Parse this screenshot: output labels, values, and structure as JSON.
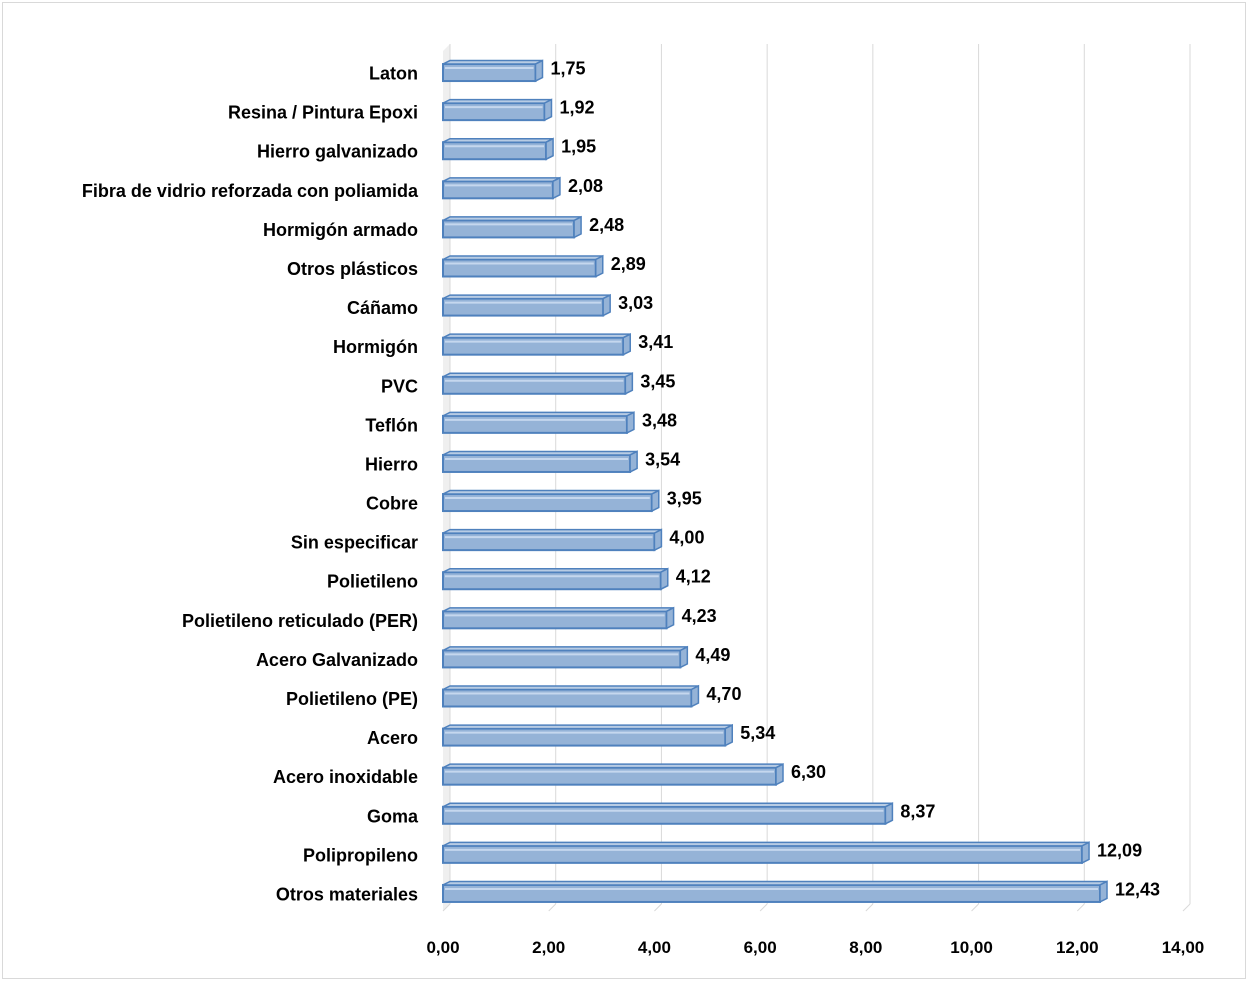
{
  "chart_data": {
    "type": "bar",
    "orientation": "horizontal",
    "title": "",
    "xlabel": "",
    "ylabel": "",
    "categories": [
      "Laton",
      "Resina / Pintura Epoxi",
      "Hierro galvanizado",
      "Fibra de vidrio reforzada con poliamida",
      "Hormigón armado",
      "Otros plásticos",
      "Cáñamo",
      "Hormigón",
      "PVC",
      "Teflón",
      "Hierro",
      "Cobre",
      "Sin especificar",
      "Polietileno",
      "Polietileno reticulado (PER)",
      "Acero Galvanizado",
      "Polietileno (PE)",
      "Acero",
      "Acero inoxidable",
      "Goma",
      "Polipropileno",
      "Otros materiales"
    ],
    "values": [
      1.75,
      1.92,
      1.95,
      2.08,
      2.48,
      2.89,
      3.03,
      3.41,
      3.45,
      3.48,
      3.54,
      3.95,
      4.0,
      4.12,
      4.23,
      4.49,
      4.7,
      5.34,
      6.3,
      8.37,
      12.09,
      12.43
    ],
    "value_labels": [
      "1,75",
      "1,92",
      "1,95",
      "2,08",
      "2,48",
      "2,89",
      "3,03",
      "3,41",
      "3,45",
      "3,48",
      "3,54",
      "3,95",
      "4,00",
      "4,12",
      "4,23",
      "4,49",
      "4,70",
      "5,34",
      "6,30",
      "8,37",
      "12,09",
      "12,43"
    ],
    "xlim": [
      0,
      14
    ],
    "xticks": [
      0,
      2,
      4,
      6,
      8,
      10,
      12,
      14
    ],
    "xtick_labels": [
      "0,00",
      "2,00",
      "4,00",
      "6,00",
      "8,00",
      "10,00",
      "12,00",
      "14,00"
    ],
    "grid": true,
    "legend": "none",
    "colors": {
      "bar_fill": "#95b3d7",
      "bar_edge": "#4f81bd",
      "bar_top": "#b8cce4",
      "bar_side": "#4f6f9f",
      "grid": "#d9d9d9",
      "wall": "#efefef"
    }
  }
}
